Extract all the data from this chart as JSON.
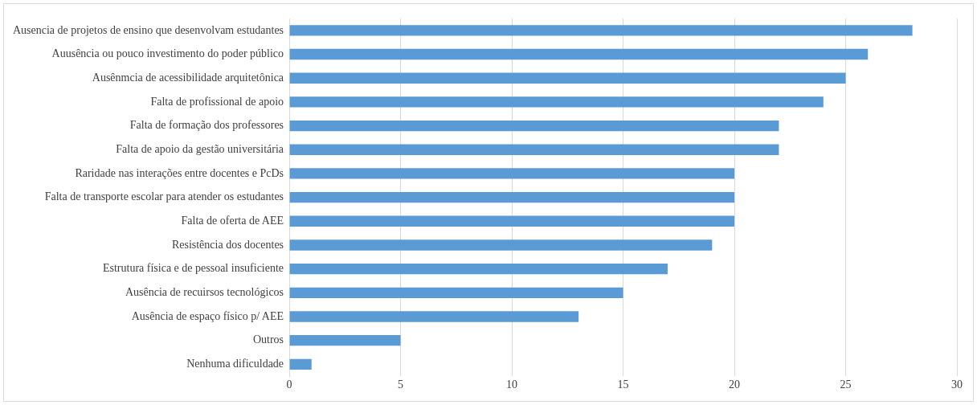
{
  "chart_data": {
    "type": "bar",
    "orientation": "horizontal",
    "categories": [
      "Ausencia de projetos de ensino que desenvolvam estudantes",
      "Auusência ou pouco investimento do poder público",
      "Ausênmcia de acessibilidade arquitetônica",
      "Falta de profissional de apoio",
      "Falta de formação dos professores",
      "Falta de apoio da gestão universitária",
      "Raridade nas interações entre docentes e PcDs",
      "Falta de transporte escolar para atender os estudantes",
      "Falta de oferta de AEE",
      "Resistência dos docentes",
      "Estrutura física e de pessoal insuficiente",
      "Ausência de recuirsos tecnológicos",
      "Ausência de espaço físico p/ AEE",
      "Outros",
      "Nenhuma dificuldade"
    ],
    "values": [
      28,
      26,
      25,
      24,
      22,
      22,
      20,
      20,
      20,
      19,
      17,
      15,
      13,
      5,
      1
    ],
    "color": "#5b9bd5",
    "xlim": [
      0,
      30
    ],
    "xticks": [
      0,
      5,
      10,
      15,
      20,
      25,
      30
    ],
    "grid": "x",
    "legend": false
  }
}
